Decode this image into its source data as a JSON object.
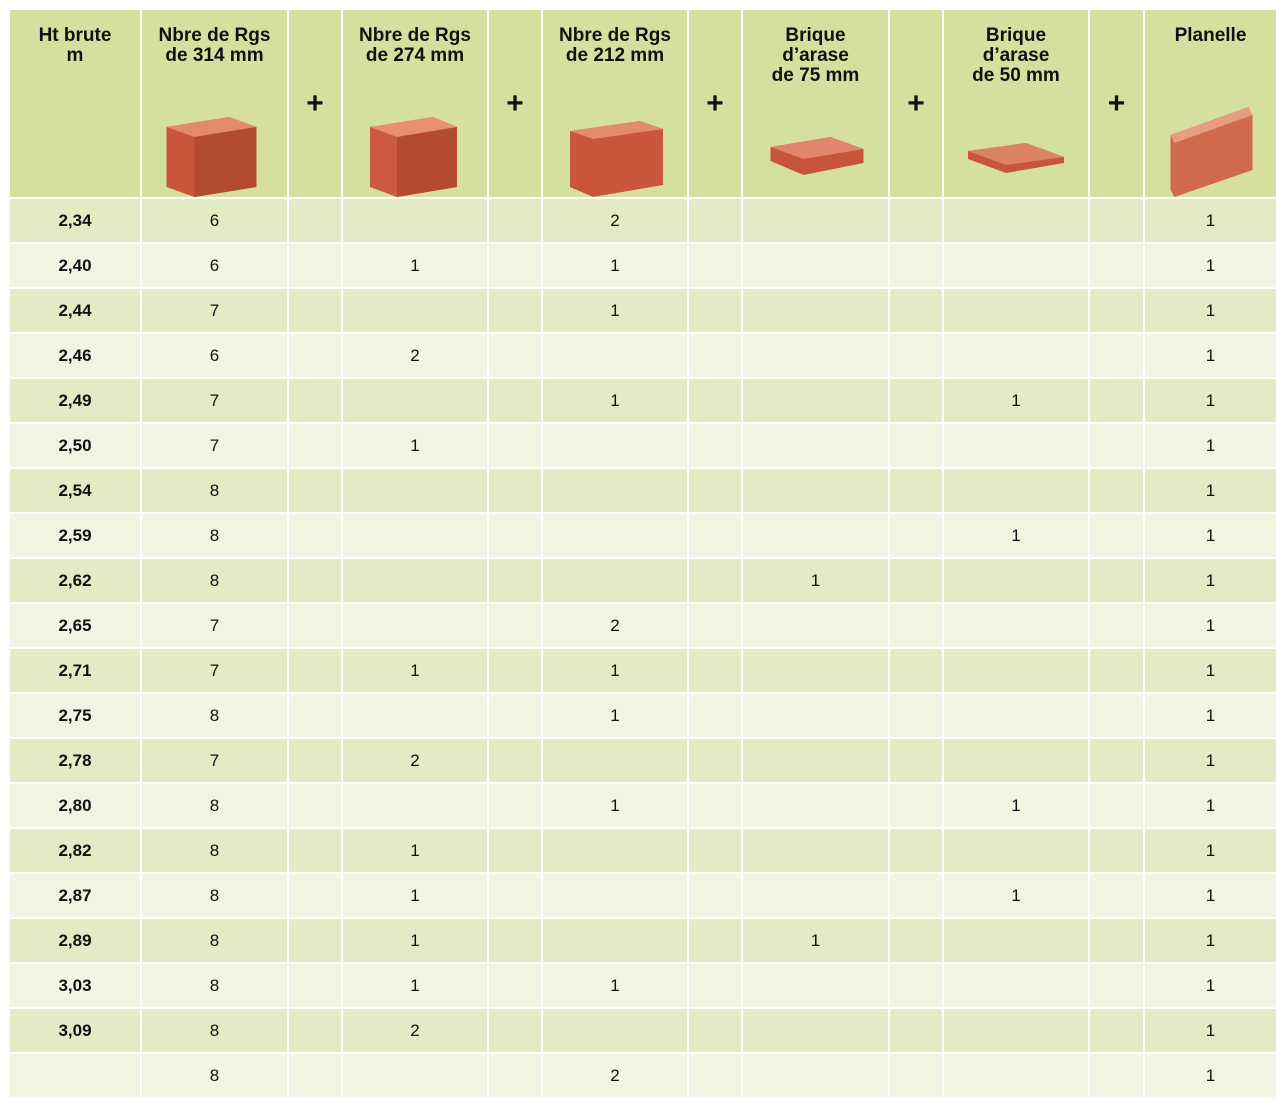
{
  "table": {
    "header": [
      [
        "Ht brute",
        "m"
      ],
      [
        "Nbre de Rgs",
        "de 314 mm"
      ],
      [
        "+"
      ],
      [
        "Nbre de Rgs",
        "de 274 mm"
      ],
      [
        "+"
      ],
      [
        "Nbre de Rgs",
        "de 212 mm"
      ],
      [
        "+"
      ],
      [
        "Brique",
        "d’arase",
        "de 75 mm"
      ],
      [
        "+"
      ],
      [
        "Brique",
        "d’arase",
        "de 50 mm"
      ],
      [
        "+"
      ],
      [
        "Planelle"
      ]
    ],
    "rows": [
      [
        "2,34",
        6,
        null,
        2,
        null,
        null,
        1
      ],
      [
        "2,40",
        6,
        1,
        1,
        null,
        null,
        1
      ],
      [
        "2,44",
        7,
        null,
        1,
        null,
        null,
        1
      ],
      [
        "2,46",
        6,
        2,
        null,
        null,
        null,
        1
      ],
      [
        "2,49",
        7,
        null,
        1,
        null,
        1,
        1
      ],
      [
        "2,50",
        7,
        1,
        null,
        null,
        null,
        1
      ],
      [
        "2,54",
        8,
        null,
        null,
        null,
        null,
        1
      ],
      [
        "2,59",
        8,
        null,
        null,
        null,
        1,
        1
      ],
      [
        "2,62",
        8,
        null,
        null,
        1,
        null,
        1
      ],
      [
        "2,65",
        7,
        null,
        2,
        null,
        null,
        1
      ],
      [
        "2,71",
        7,
        1,
        1,
        null,
        null,
        1
      ],
      [
        "2,75",
        8,
        null,
        1,
        null,
        null,
        1
      ],
      [
        "2,78",
        7,
        2,
        null,
        null,
        null,
        1
      ],
      [
        "2,80",
        8,
        null,
        1,
        null,
        1,
        1
      ],
      [
        "2,82",
        8,
        1,
        null,
        null,
        null,
        1
      ],
      [
        "2,87",
        8,
        1,
        null,
        null,
        1,
        1
      ],
      [
        "2,89",
        8,
        1,
        null,
        1,
        null,
        1
      ],
      [
        "3,03",
        8,
        1,
        1,
        null,
        null,
        1
      ],
      [
        "3,09",
        8,
        2,
        null,
        null,
        null,
        1
      ],
      [
        null,
        8,
        null,
        2,
        null,
        null,
        1
      ]
    ]
  }
}
